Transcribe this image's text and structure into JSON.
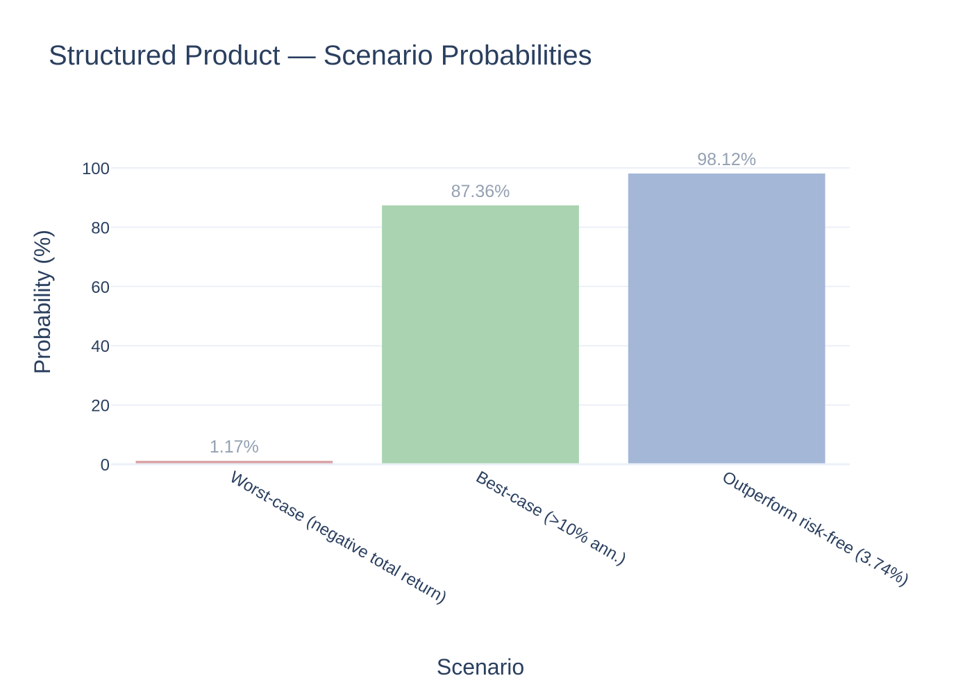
{
  "chart_data": {
    "type": "bar",
    "title": "Structured Product — Scenario Probabilities",
    "xlabel": "Scenario",
    "ylabel": "Probability (%)",
    "ylim": [
      0,
      100
    ],
    "yticks": [
      0,
      20,
      40,
      60,
      80,
      100
    ],
    "grid": true,
    "categories": [
      "Worst-case (negative total return)",
      "Best-case (>10% ann.)",
      "Outperform risk-free (3.74%)"
    ],
    "values": [
      1.17,
      87.36,
      98.12
    ],
    "data_labels": [
      "1.17%",
      "87.36%",
      "98.12%"
    ],
    "colors": [
      "#d9a3a6",
      "#a9d3b1",
      "#a4b7d7"
    ]
  }
}
